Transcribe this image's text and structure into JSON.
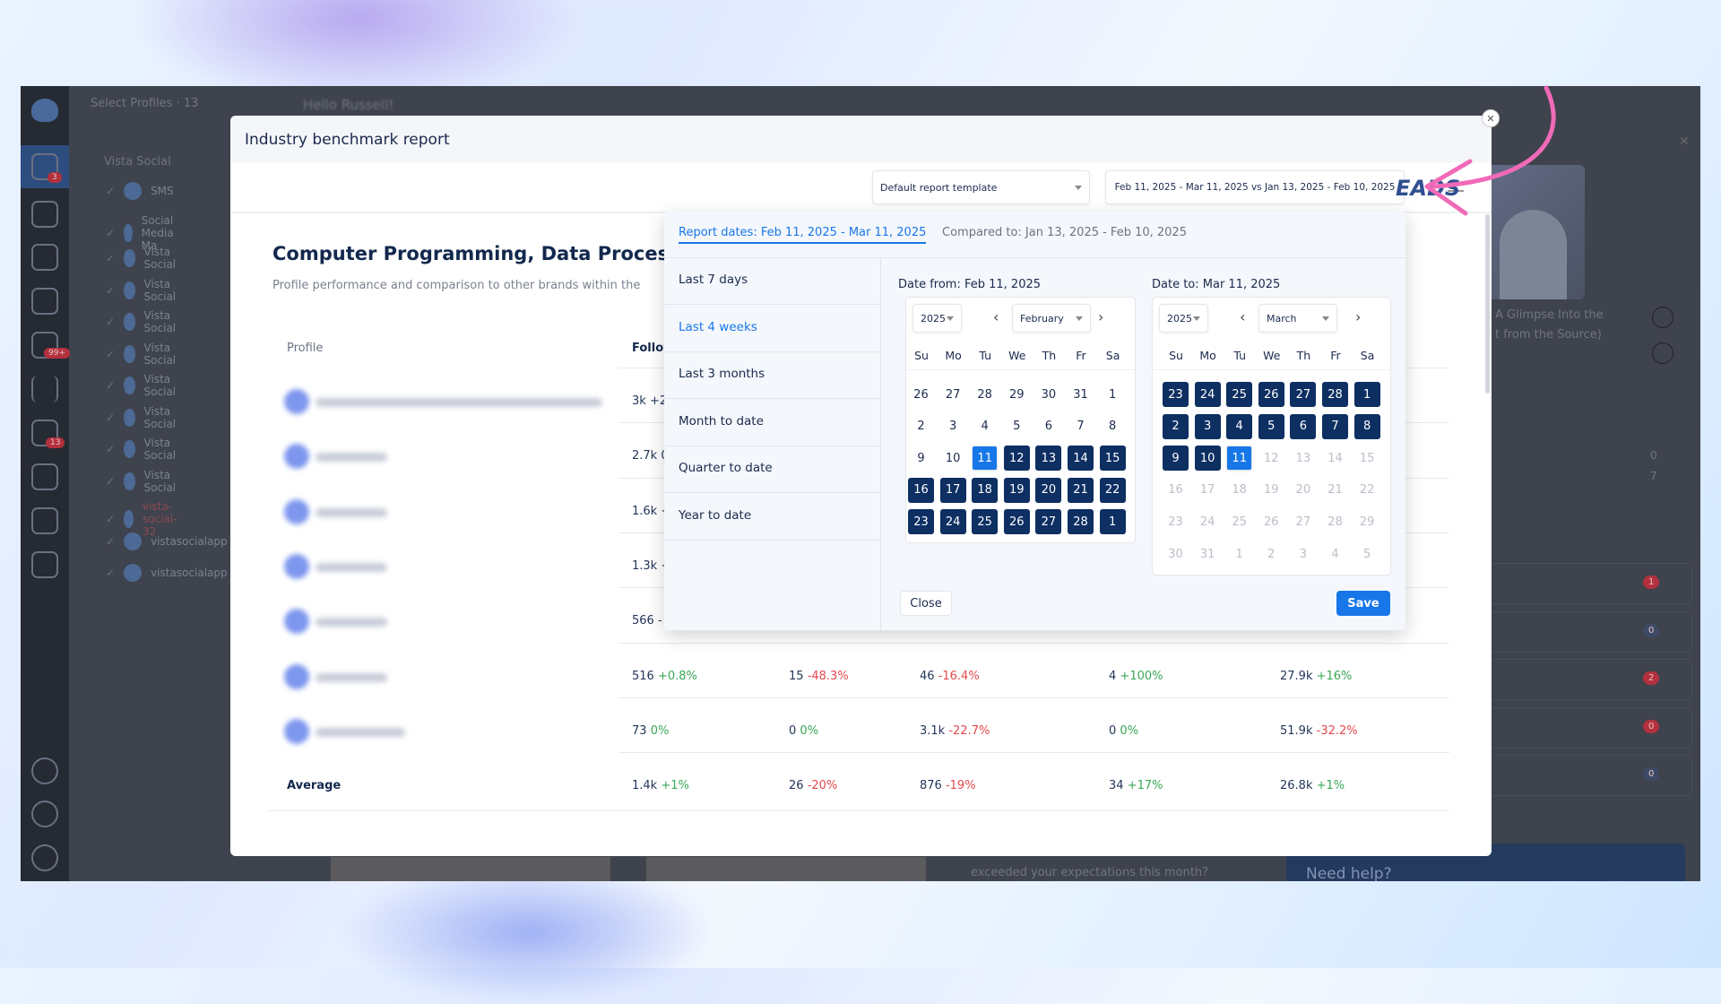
{
  "app": {
    "select_profiles": "Select Profiles · 13",
    "greeting": "Hello Russell!",
    "group": "Vista Social",
    "profiles": [
      "SMS",
      "Social Media Ma",
      "Vista Social",
      "Vista Social",
      "Vista Social",
      "Vista Social",
      "Vista Social",
      "Vista Social",
      "Vista Social",
      "Vista Social",
      "vista-social-32",
      "vistasocialapp",
      "vistasocialapp"
    ],
    "rail_badges": [
      "3",
      "99+",
      "13"
    ],
    "right": {
      "video_caption_1": "A Glimpse Into the",
      "video_caption_2": "t from the Source)",
      "thumb_text": "EADS",
      "counts": [
        "0",
        "7"
      ],
      "badges": [
        {
          "v": "1",
          "c": "#b3303d"
        },
        {
          "v": "0",
          "c": "#3c4a66"
        },
        {
          "v": "2",
          "c": "#b3303d"
        },
        {
          "v": "0",
          "c": "#b3303d"
        },
        {
          "v": "0",
          "c": "#3c4a66"
        }
      ]
    },
    "bottom": {
      "question": "exceeded your expectations this month?",
      "help": "Need help?"
    }
  },
  "modal": {
    "title": "Industry benchmark report",
    "template": "Default report template",
    "date_range": "Feb 11, 2025 - Mar 11, 2025 vs Jan 13, 2025 - Feb 10, 2025",
    "page_title": "Computer Programming, Data Processin",
    "subtitle": "Profile performance and comparison to other brands within the",
    "table": {
      "headers": [
        "Profile",
        "Followers"
      ],
      "rows": [
        {
          "c": [
            [
              "3k",
              "+2",
              ""
            ]
          ]
        },
        {
          "c": [
            [
              "2.7k",
              "0",
              ""
            ]
          ]
        },
        {
          "c": [
            [
              "1.6k",
              "+",
              ""
            ]
          ]
        },
        {
          "c": [
            [
              "1.3k",
              "+",
              ""
            ]
          ]
        },
        {
          "c": [
            [
              "566",
              "-",
              ""
            ]
          ]
        },
        {
          "c": [
            [
              "516",
              "+0.8%",
              "up"
            ],
            [
              "15",
              "-48.3%",
              "down"
            ],
            [
              "46",
              "-16.4%",
              "down"
            ],
            [
              "4",
              "+100%",
              "up"
            ],
            [
              "27.9k",
              "+16%",
              "up"
            ]
          ]
        },
        {
          "c": [
            [
              "73",
              "0%",
              "up"
            ],
            [
              "0",
              "0%",
              "up"
            ],
            [
              "3.1k",
              "-22.7%",
              "down"
            ],
            [
              "0",
              "0%",
              "up"
            ],
            [
              "51.9k",
              "-32.2%",
              "down"
            ]
          ]
        }
      ],
      "average": {
        "label": "Average",
        "c": [
          [
            "1.4k",
            "+1%",
            "up"
          ],
          [
            "26",
            "-20%",
            "down"
          ],
          [
            "876",
            "-19%",
            "down"
          ],
          [
            "34",
            "+17%",
            "up"
          ],
          [
            "26.8k",
            "+1%",
            "up"
          ]
        ]
      }
    }
  },
  "picker": {
    "report_tab": "Report dates: Feb 11, 2025 - Mar 11, 2025",
    "compare_tab": "Compared to: Jan 13, 2025 - Feb 10, 2025",
    "presets": [
      "Last 7 days",
      "Last 4 weeks",
      "Last 3 months",
      "Month to date",
      "Quarter to date",
      "Year to date"
    ],
    "active_preset": 1,
    "weekdays": [
      "Su",
      "Mo",
      "Tu",
      "We",
      "Th",
      "Fr",
      "Sa"
    ],
    "from": {
      "label": "Date from: Feb 11, 2025",
      "year": "2025",
      "month": "February",
      "weeks": [
        [
          [
            "26",
            ""
          ],
          [
            "27",
            ""
          ],
          [
            "28",
            ""
          ],
          [
            "29",
            ""
          ],
          [
            "30",
            ""
          ],
          [
            "31",
            ""
          ],
          [
            "1",
            ""
          ]
        ],
        [
          [
            "2",
            ""
          ],
          [
            "3",
            ""
          ],
          [
            "4",
            ""
          ],
          [
            "5",
            ""
          ],
          [
            "6",
            ""
          ],
          [
            "7",
            ""
          ],
          [
            "8",
            ""
          ]
        ],
        [
          [
            "9",
            ""
          ],
          [
            "10",
            ""
          ],
          [
            "11",
            "sel"
          ],
          [
            "12",
            "in"
          ],
          [
            "13",
            "in"
          ],
          [
            "14",
            "in"
          ],
          [
            "15",
            "in"
          ]
        ],
        [
          [
            "16",
            "in"
          ],
          [
            "17",
            "in"
          ],
          [
            "18",
            "in"
          ],
          [
            "19",
            "in"
          ],
          [
            "20",
            "in"
          ],
          [
            "21",
            "in"
          ],
          [
            "22",
            "in"
          ]
        ],
        [
          [
            "23",
            "in"
          ],
          [
            "24",
            "in"
          ],
          [
            "25",
            "in"
          ],
          [
            "26",
            "in"
          ],
          [
            "27",
            "in"
          ],
          [
            "28",
            "in"
          ],
          [
            "1",
            "in"
          ]
        ]
      ]
    },
    "to": {
      "label": "Date to: Mar 11, 2025",
      "year": "2025",
      "month": "March",
      "weeks": [
        [
          [
            "23",
            "in"
          ],
          [
            "24",
            "in"
          ],
          [
            "25",
            "in"
          ],
          [
            "26",
            "in"
          ],
          [
            "27",
            "in"
          ],
          [
            "28",
            "in"
          ],
          [
            "1",
            "in"
          ]
        ],
        [
          [
            "2",
            "in"
          ],
          [
            "3",
            "in"
          ],
          [
            "4",
            "in"
          ],
          [
            "5",
            "in"
          ],
          [
            "6",
            "in"
          ],
          [
            "7",
            "in"
          ],
          [
            "8",
            "in"
          ]
        ],
        [
          [
            "9",
            "in"
          ],
          [
            "10",
            "in"
          ],
          [
            "11",
            "sel"
          ],
          [
            "12",
            "out"
          ],
          [
            "13",
            "out"
          ],
          [
            "14",
            "out"
          ],
          [
            "15",
            "out"
          ]
        ],
        [
          [
            "16",
            "out"
          ],
          [
            "17",
            "out"
          ],
          [
            "18",
            "out"
          ],
          [
            "19",
            "out"
          ],
          [
            "20",
            "out"
          ],
          [
            "21",
            "out"
          ],
          [
            "22",
            "out"
          ]
        ],
        [
          [
            "23",
            "out"
          ],
          [
            "24",
            "out"
          ],
          [
            "25",
            "out"
          ],
          [
            "26",
            "out"
          ],
          [
            "27",
            "out"
          ],
          [
            "28",
            "out"
          ],
          [
            "29",
            "out"
          ]
        ],
        [
          [
            "30",
            "out"
          ],
          [
            "31",
            "out"
          ],
          [
            "1",
            "out"
          ],
          [
            "2",
            "out"
          ],
          [
            "3",
            "out"
          ],
          [
            "4",
            "out"
          ],
          [
            "5",
            "out"
          ]
        ]
      ]
    },
    "close": "Close",
    "save": "Save"
  },
  "colors": {
    "accent": "#1877e8",
    "range": "#0d2f62",
    "annotation_arrow": "#f06ab8",
    "up": "#3aa757",
    "down": "#e5484d"
  }
}
